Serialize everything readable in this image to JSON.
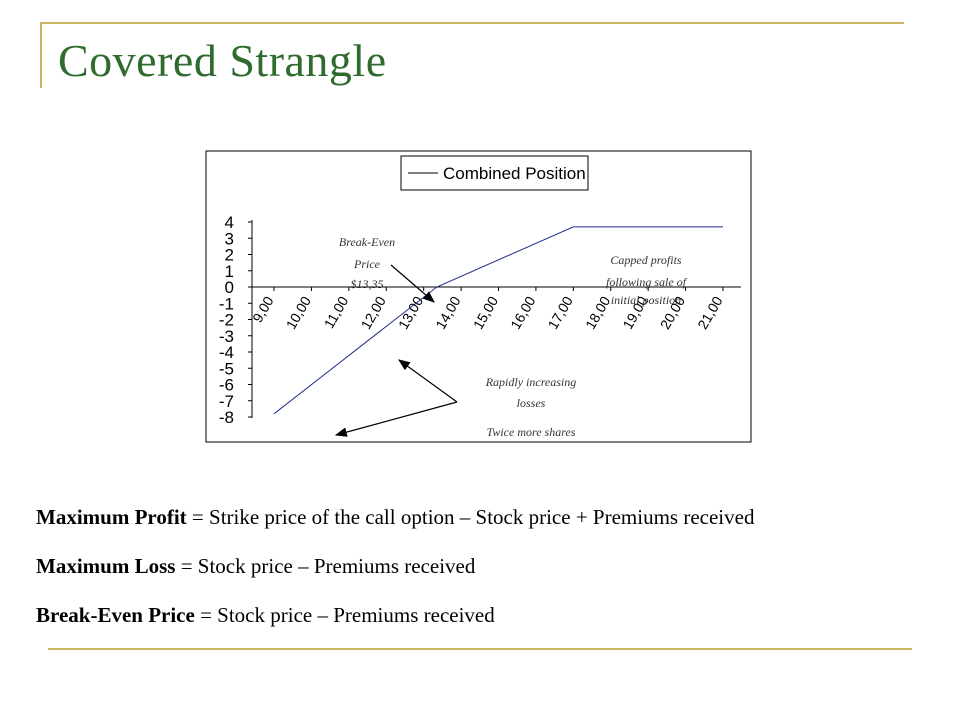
{
  "slide": {
    "title": "Covered Strangle",
    "colors": {
      "title": "#2f6b2f",
      "rule": "#c9b560",
      "line": "#1f2f8f"
    }
  },
  "chart_data": {
    "type": "line",
    "legend": {
      "label": "Combined Position",
      "placement": "top"
    },
    "x_ticks": [
      "9,00",
      "10,00",
      "11,00",
      "12,00",
      "13,00",
      "14,00",
      "15,00",
      "16,00",
      "17,00",
      "18,00",
      "19,00",
      "20,00",
      "21,00"
    ],
    "xlim": [
      9,
      21
    ],
    "y_ticks": [
      "4",
      "3",
      "2",
      "1",
      "0",
      "-1",
      "-2",
      "-3",
      "-4",
      "-5",
      "-6",
      "-7",
      "-8"
    ],
    "ylim": [
      -8,
      4
    ],
    "grid": false,
    "series": [
      {
        "name": "Combined Position",
        "x": [
          9,
          13.35,
          17,
          21
        ],
        "y": [
          -7.8,
          0,
          3.7,
          3.7
        ]
      }
    ],
    "annotations": {
      "breakeven": [
        "Break-Even",
        "Price",
        "$13,35"
      ],
      "capped": [
        "Capped profits",
        "following sale of",
        "initial position"
      ],
      "losses": [
        "Rapidly increasing",
        "losses"
      ],
      "shares": "Twice more shares"
    }
  },
  "formulas": [
    {
      "term": "Maximum Profit",
      "definition": " = Strike price of the call option – Stock price + Premiums received"
    },
    {
      "term": "Maximum Loss",
      "definition": " = Stock price – Premiums received"
    },
    {
      "term": "Break-Even Price",
      "definition": " = Stock price – Premiums received"
    }
  ]
}
